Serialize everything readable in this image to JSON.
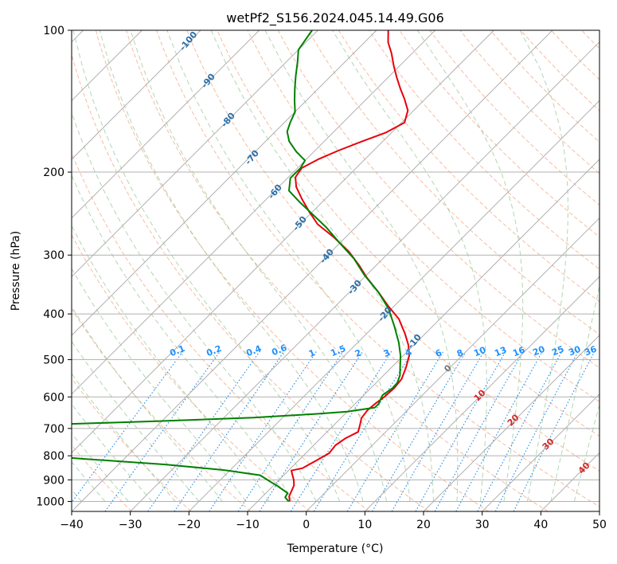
{
  "chart_data": {
    "type": "line",
    "title": "wetPf2_S156.2024.045.14.49.G06",
    "xlabel": "Temperature (°C)",
    "ylabel": "Pressure (hPa)",
    "xlim": [
      -40,
      50
    ],
    "ylim": [
      1050,
      100
    ],
    "y_scale": "log",
    "grid": true,
    "x_ticks": [
      -40,
      -30,
      -20,
      -10,
      0,
      10,
      20,
      30,
      40,
      50
    ],
    "y_ticks": [
      100,
      200,
      300,
      400,
      500,
      600,
      700,
      800,
      900,
      1000
    ],
    "isotherm_skew": 45,
    "series": [
      {
        "name": "",
        "color": "#e8000b",
        "points": [
          [
            -4.5,
            1000
          ],
          [
            -5.5,
            975
          ],
          [
            -6.0,
            950
          ],
          [
            -6.5,
            925
          ],
          [
            -7.5,
            900
          ],
          [
            -8.5,
            880
          ],
          [
            -9.5,
            860
          ],
          [
            -8.0,
            850
          ],
          [
            -7.0,
            820
          ],
          [
            -6.0,
            790
          ],
          [
            -6.3,
            760
          ],
          [
            -5.8,
            735
          ],
          [
            -4.7,
            712
          ],
          [
            -5.5,
            690
          ],
          [
            -6.5,
            665
          ],
          [
            -6.8,
            640
          ],
          [
            -6.6,
            620
          ],
          [
            -6.2,
            600
          ],
          [
            -6.0,
            575
          ],
          [
            -6.3,
            550
          ],
          [
            -7.5,
            520
          ],
          [
            -9.0,
            490
          ],
          [
            -11.0,
            465
          ],
          [
            -13.5,
            440
          ],
          [
            -17.0,
            410
          ],
          [
            -21.0,
            385
          ],
          [
            -25.0,
            360
          ],
          [
            -29.5,
            335
          ],
          [
            -33.0,
            315
          ],
          [
            -37.0,
            295
          ],
          [
            -42.0,
            275
          ],
          [
            -47.0,
            258
          ],
          [
            -50.5,
            243
          ],
          [
            -54.0,
            228
          ],
          [
            -57.0,
            215
          ],
          [
            -58.8,
            205
          ],
          [
            -59.3,
            196
          ],
          [
            -58.0,
            188
          ],
          [
            -56.0,
            180
          ],
          [
            -53.5,
            172
          ],
          [
            -51.0,
            165
          ],
          [
            -49.5,
            157
          ],
          [
            -51.0,
            148
          ],
          [
            -53.5,
            140
          ],
          [
            -56.0,
            133
          ],
          [
            -58.5,
            126
          ],
          [
            -61.0,
            119
          ],
          [
            -63.5,
            112
          ],
          [
            -66.0,
            106
          ],
          [
            -68.0,
            100
          ]
        ]
      },
      {
        "name": "",
        "color": "#008000",
        "points": [
          [
            -4.7,
            1000
          ],
          [
            -6.0,
            980
          ],
          [
            -6.3,
            960
          ],
          [
            -9.0,
            930
          ],
          [
            -12.0,
            900
          ],
          [
            -14.0,
            880
          ],
          [
            -21.0,
            858
          ],
          [
            -32.0,
            835
          ],
          [
            -47.0,
            812
          ],
          [
            -57.0,
            795
          ],
          [
            -57.6,
            780
          ],
          [
            -61.5,
            762
          ],
          [
            -75.0,
            748
          ],
          [
            -95.0,
            740
          ],
          [
            -96.0,
            708
          ],
          [
            -80.0,
            699
          ],
          [
            -60.0,
            688
          ],
          [
            -40.0,
            675
          ],
          [
            -25.0,
            664
          ],
          [
            -15.0,
            652
          ],
          [
            -10.0,
            645
          ],
          [
            -6.0,
            632
          ],
          [
            -6.0,
            620
          ],
          [
            -6.5,
            605
          ],
          [
            -6.8,
            595
          ],
          [
            -6.3,
            575
          ],
          [
            -6.4,
            560
          ],
          [
            -7.2,
            540
          ],
          [
            -8.5,
            520
          ],
          [
            -10.5,
            490
          ],
          [
            -13.0,
            460
          ],
          [
            -16.5,
            425
          ],
          [
            -20.5,
            390
          ],
          [
            -25.0,
            360
          ],
          [
            -30.5,
            330
          ],
          [
            -35.0,
            305
          ],
          [
            -40.0,
            283
          ],
          [
            -45.0,
            262
          ],
          [
            -49.5,
            246
          ],
          [
            -54.0,
            231
          ],
          [
            -57.6,
            219
          ],
          [
            -59.5,
            206
          ],
          [
            -59.5,
            196
          ],
          [
            -60.0,
            189
          ],
          [
            -63.0,
            181
          ],
          [
            -66.0,
            172
          ],
          [
            -68.0,
            164
          ],
          [
            -69.0,
            157
          ],
          [
            -70.0,
            149
          ],
          [
            -72.0,
            141
          ],
          [
            -74.0,
            133
          ],
          [
            -76.0,
            125
          ],
          [
            -78.0,
            117
          ],
          [
            -80.0,
            110
          ],
          [
            -81.0,
            100
          ]
        ]
      }
    ],
    "dry_adiabat_labels": [
      "-100",
      "-90",
      "-80",
      "-70",
      "-60",
      "-50",
      "-40",
      "-30",
      "-20",
      "-10"
    ],
    "moist_adiabat_labels": [
      "0",
      "10",
      "20",
      "30",
      "40"
    ],
    "mixing_ratio_labels": [
      "0.1",
      "0.2",
      "0.4",
      "0.6",
      "1",
      "1.5",
      "2",
      "3",
      "4",
      "6",
      "8",
      "10",
      "13",
      "16",
      "20",
      "25",
      "30",
      "36"
    ],
    "colors": {
      "isotherm": "#b0b0b0",
      "isobar": "#b0b0b0",
      "dry_adiabat": "#f4a582",
      "moist_adiabat": "#92c592",
      "mixing_ratio": "#1e88e5",
      "dry_label": "#2a6fa8",
      "moist_label": "#d62728",
      "moist_label_zero": "#777777"
    }
  }
}
